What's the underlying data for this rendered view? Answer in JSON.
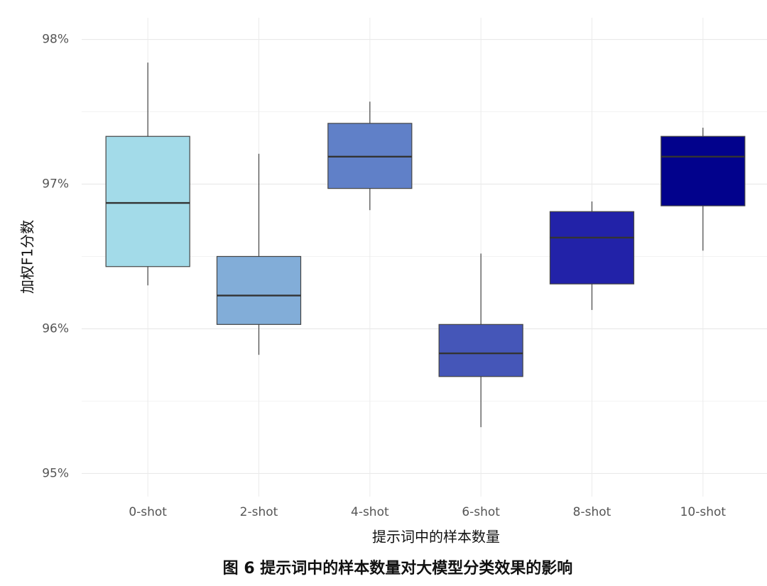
{
  "chart_data": {
    "type": "box",
    "y_label": "加权F1分数",
    "x_label": "提示词中的样本数量",
    "caption": "图 6 提示词中的样本数量对大模型分类效果的影响",
    "categories": [
      "0-shot",
      "2-shot",
      "4-shot",
      "6-shot",
      "8-shot",
      "10-shot"
    ],
    "min": [
      96.3,
      95.82,
      96.82,
      95.32,
      96.13,
      96.54
    ],
    "q1": [
      96.43,
      96.03,
      96.97,
      95.67,
      96.31,
      96.85
    ],
    "median": [
      96.87,
      96.23,
      97.19,
      95.83,
      96.63,
      97.19
    ],
    "q3": [
      97.33,
      96.5,
      97.42,
      96.03,
      96.81,
      97.33
    ],
    "max": [
      97.84,
      97.21,
      97.57,
      96.52,
      96.88,
      97.39
    ],
    "colors": [
      "#a3dbe9",
      "#82add8",
      "#6080c8",
      "#4556b8",
      "#2222a8",
      "#02028c"
    ],
    "ylim": [
      94.84,
      98.15
    ],
    "yticks": [
      {
        "value": 95,
        "label": "95%"
      },
      {
        "value": 96,
        "label": "96%"
      },
      {
        "value": 97,
        "label": "97%"
      },
      {
        "value": 98,
        "label": "98%"
      }
    ],
    "minor_yticks": [
      95.5,
      96.5,
      97.5
    ],
    "grid": true
  }
}
